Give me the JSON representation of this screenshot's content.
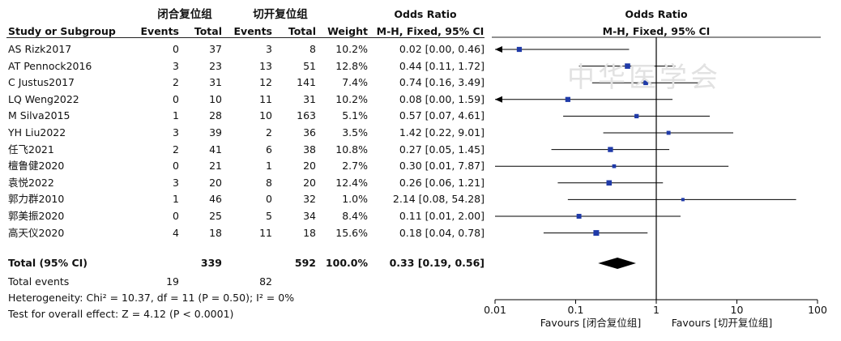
{
  "header": {
    "group1": "闭合复位组",
    "group2": "切开复位组",
    "odds_ratio": "Odds Ratio",
    "odds_ratio_plot": "Odds Ratio",
    "col_study": "Study or Subgroup",
    "col_events1": "Events",
    "col_total1": "Total",
    "col_events2": "Events",
    "col_total2": "Total",
    "col_weight": "Weight",
    "col_method": "M-H, Fixed, 95% CI",
    "plot_method": "M-H, Fixed, 95% CI"
  },
  "rows": [
    {
      "study": "AS Rizk2017",
      "e1": "0",
      "n1": "37",
      "e2": "3",
      "n2": "8",
      "weight": "10.2%",
      "ci": "0.02 [0.00, 0.46]"
    },
    {
      "study": "AT Pennock2016",
      "e1": "3",
      "n1": "23",
      "e2": "13",
      "n2": "51",
      "weight": "12.8%",
      "ci": "0.44 [0.11, 1.72]"
    },
    {
      "study": "C Justus2017",
      "e1": "2",
      "n1": "31",
      "e2": "12",
      "n2": "141",
      "weight": "7.4%",
      "ci": "0.74 [0.16, 3.49]"
    },
    {
      "study": "LQ Weng2022",
      "e1": "0",
      "n1": "10",
      "e2": "11",
      "n2": "31",
      "weight": "10.2%",
      "ci": "0.08 [0.00, 1.59]"
    },
    {
      "study": "M Silva2015",
      "e1": "1",
      "n1": "28",
      "e2": "10",
      "n2": "163",
      "weight": "5.1%",
      "ci": "0.57 [0.07, 4.61]"
    },
    {
      "study": "YH Liu2022",
      "e1": "3",
      "n1": "39",
      "e2": "2",
      "n2": "36",
      "weight": "3.5%",
      "ci": "1.42 [0.22, 9.01]"
    },
    {
      "study": "任飞2021",
      "e1": "2",
      "n1": "41",
      "e2": "6",
      "n2": "38",
      "weight": "10.8%",
      "ci": "0.27 [0.05, 1.45]"
    },
    {
      "study": "檀鲁健2020",
      "e1": "0",
      "n1": "21",
      "e2": "1",
      "n2": "20",
      "weight": "2.7%",
      "ci": "0.30 [0.01, 7.87]"
    },
    {
      "study": "袁悦2022",
      "e1": "3",
      "n1": "20",
      "e2": "8",
      "n2": "20",
      "weight": "12.4%",
      "ci": "0.26 [0.06, 1.21]"
    },
    {
      "study": "郭力群2010",
      "e1": "1",
      "n1": "46",
      "e2": "0",
      "n2": "32",
      "weight": "1.0%",
      "ci": "2.14 [0.08, 54.28]"
    },
    {
      "study": "郭美振2020",
      "e1": "0",
      "n1": "25",
      "e2": "5",
      "n2": "34",
      "weight": "8.4%",
      "ci": "0.11 [0.01, 2.00]"
    },
    {
      "study": "高天仪2020",
      "e1": "4",
      "n1": "18",
      "e2": "11",
      "n2": "18",
      "weight": "15.6%",
      "ci": "0.18 [0.04, 0.78]"
    }
  ],
  "total": {
    "label": "Total (95% CI)",
    "n1": "339",
    "n2": "592",
    "weight": "100.0%",
    "ci": "0.33 [0.19, 0.56]"
  },
  "total_events": {
    "label": "Total events",
    "e1": "19",
    "e2": "82"
  },
  "heterogeneity": "Heterogeneity: Chi² = 10.37, df = 11 (P = 0.50); I² = 0%",
  "overall_effect": "Test for overall effect: Z = 4.12 (P < 0.0001)",
  "axis": {
    "ticks": [
      "0.01",
      "0.1",
      "1",
      "10",
      "100"
    ],
    "favours_left": "Favours [闭合复位组]",
    "favours_right": "Favours [切开复位组]"
  },
  "watermark_text": "中华医学会",
  "chart_data": {
    "type": "forest",
    "scale": "log",
    "xlim": [
      0.01,
      100
    ],
    "reference_line": 1,
    "studies": [
      {
        "name": "AS Rizk2017",
        "or": 0.02,
        "lower": 0.0,
        "upper": 0.46,
        "weight": 10.2
      },
      {
        "name": "AT Pennock2016",
        "or": 0.44,
        "lower": 0.11,
        "upper": 1.72,
        "weight": 12.8
      },
      {
        "name": "C Justus2017",
        "or": 0.74,
        "lower": 0.16,
        "upper": 3.49,
        "weight": 7.4
      },
      {
        "name": "LQ Weng2022",
        "or": 0.08,
        "lower": 0.0,
        "upper": 1.59,
        "weight": 10.2
      },
      {
        "name": "M Silva2015",
        "or": 0.57,
        "lower": 0.07,
        "upper": 4.61,
        "weight": 5.1
      },
      {
        "name": "YH Liu2022",
        "or": 1.42,
        "lower": 0.22,
        "upper": 9.01,
        "weight": 3.5
      },
      {
        "name": "任飞2021",
        "or": 0.27,
        "lower": 0.05,
        "upper": 1.45,
        "weight": 10.8
      },
      {
        "name": "檀鲁健2020",
        "or": 0.3,
        "lower": 0.01,
        "upper": 7.87,
        "weight": 2.7
      },
      {
        "name": "袁悦2022",
        "or": 0.26,
        "lower": 0.06,
        "upper": 1.21,
        "weight": 12.4
      },
      {
        "name": "郭力群2010",
        "or": 2.14,
        "lower": 0.08,
        "upper": 54.28,
        "weight": 1.0
      },
      {
        "name": "郭美振2020",
        "or": 0.11,
        "lower": 0.01,
        "upper": 2.0,
        "weight": 8.4
      },
      {
        "name": "高天仪2020",
        "or": 0.18,
        "lower": 0.04,
        "upper": 0.78,
        "weight": 15.6
      }
    ],
    "pooled": {
      "or": 0.33,
      "lower": 0.19,
      "upper": 0.56
    },
    "colors": {
      "marker": "#1f3aa8",
      "line": "#000000",
      "diamond": "#000000"
    }
  }
}
